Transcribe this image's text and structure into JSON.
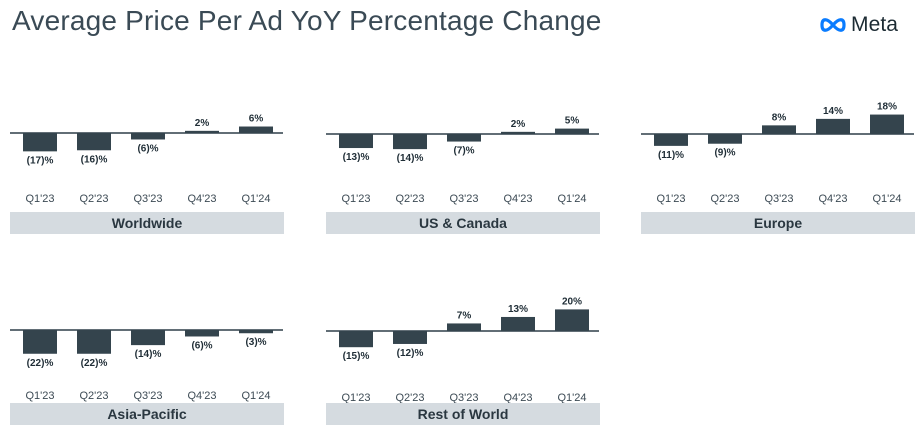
{
  "header": {
    "title": "Average Price Per Ad YoY Percentage Change",
    "logo_text": "Meta",
    "logo_icon": "meta-infinity-icon"
  },
  "colors": {
    "bar": "#34444d",
    "axis": "#2f3e48",
    "region_bg": "#d5dbe0"
  },
  "chart_data": [
    {
      "type": "bar",
      "region": "Worldwide",
      "categories": [
        "Q1'23",
        "Q2'23",
        "Q3'23",
        "Q4'23",
        "Q1'24"
      ],
      "values": [
        -17,
        -16,
        -6,
        2,
        6
      ],
      "labels": [
        "(17)%",
        "(16)%",
        "(6)%",
        "2%",
        "6%"
      ]
    },
    {
      "type": "bar",
      "region": "US & Canada",
      "categories": [
        "Q1'23",
        "Q2'23",
        "Q3'23",
        "Q4'23",
        "Q1'24"
      ],
      "values": [
        -13,
        -14,
        -7,
        2,
        5
      ],
      "labels": [
        "(13)%",
        "(14)%",
        "(7)%",
        "2%",
        "5%"
      ]
    },
    {
      "type": "bar",
      "region": "Europe",
      "categories": [
        "Q1'23",
        "Q2'23",
        "Q3'23",
        "Q4'23",
        "Q1'24"
      ],
      "values": [
        -11,
        -9,
        8,
        14,
        18
      ],
      "labels": [
        "(11)%",
        "(9)%",
        "8%",
        "14%",
        "18%"
      ]
    },
    {
      "type": "bar",
      "region": "Asia-Pacific",
      "categories": [
        "Q1'23",
        "Q2'23",
        "Q3'23",
        "Q4'23",
        "Q1'24"
      ],
      "values": [
        -22,
        -22,
        -14,
        -6,
        -3
      ],
      "labels": [
        "(22)%",
        "(22)%",
        "(14)%",
        "(6)%",
        "(3)%"
      ]
    },
    {
      "type": "bar",
      "region": "Rest of World",
      "categories": [
        "Q1'23",
        "Q2'23",
        "Q3'23",
        "Q4'23",
        "Q1'24"
      ],
      "values": [
        -15,
        -12,
        7,
        13,
        20
      ],
      "labels": [
        "(15)%",
        "(12)%",
        "7%",
        "13%",
        "20%"
      ]
    }
  ]
}
